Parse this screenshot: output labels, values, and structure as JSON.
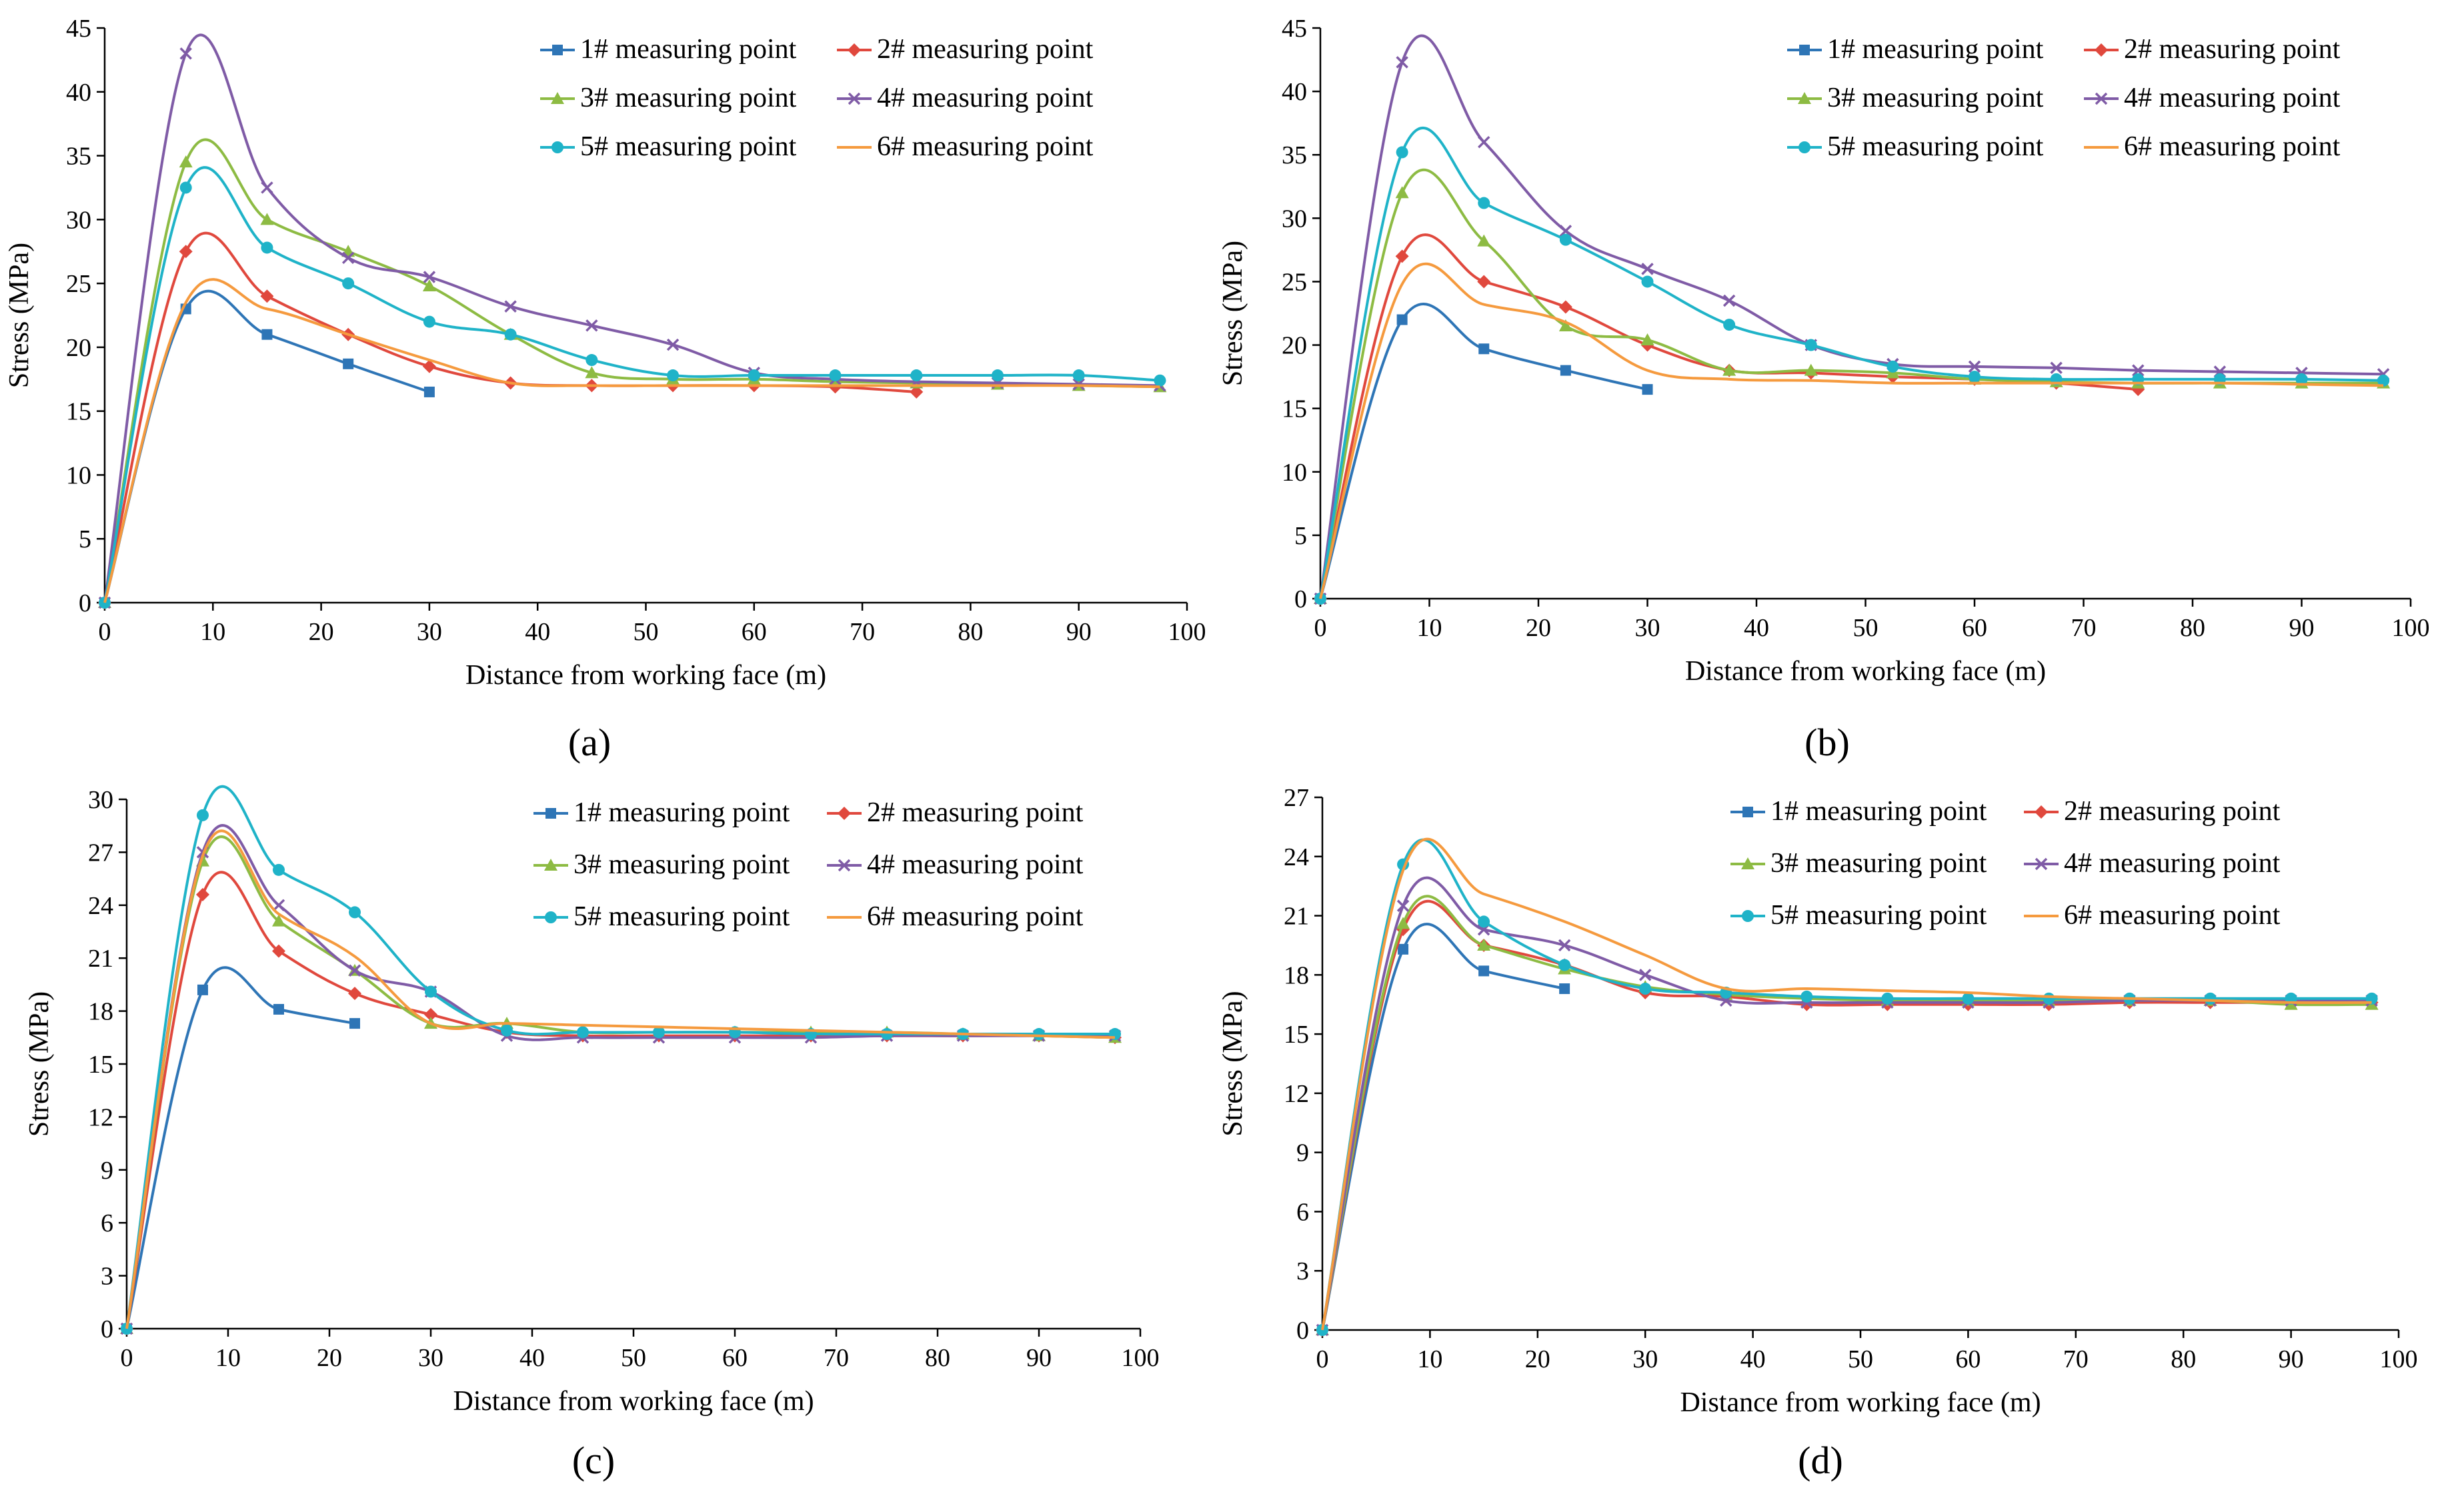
{
  "series_colors": [
    "#2e75b6",
    "#e0483d",
    "#8dbb43",
    "#7f5ba6",
    "#1fb3c8",
    "#f59a3e"
  ],
  "series_markers": [
    "square",
    "diamond",
    "triangle",
    "cross",
    "circle",
    "none"
  ],
  "chart_data": [
    {
      "type": "line",
      "panel_label": "(a)",
      "xlabel": "Distance from working face (m)",
      "ylabel": "Stress (MPa)",
      "xlim": [
        0,
        100
      ],
      "ylim": [
        0,
        45
      ],
      "xticks": [
        0,
        10,
        20,
        30,
        40,
        50,
        60,
        70,
        80,
        90,
        100
      ],
      "yticks": [
        0,
        5,
        10,
        15,
        20,
        25,
        30,
        35,
        40,
        45
      ],
      "grid": false,
      "legend_position": "top-right",
      "series": [
        {
          "name": "1# measuring point",
          "x": [
            0,
            7.5,
            15,
            22.5,
            30
          ],
          "y": [
            0,
            23,
            21,
            18.7,
            16.5
          ]
        },
        {
          "name": "2# measuring point",
          "x": [
            0,
            7.5,
            15,
            22.5,
            30,
            37.5,
            45,
            52.5,
            60,
            67.5,
            75
          ],
          "y": [
            0,
            27.5,
            24,
            21,
            18.5,
            17.2,
            17,
            17,
            17,
            16.9,
            16.5
          ]
        },
        {
          "name": "3# measuring point",
          "x": [
            0,
            7.5,
            15,
            22.5,
            30,
            37.5,
            45,
            52.5,
            60,
            67.5,
            75,
            82.5,
            90,
            97.5
          ],
          "y": [
            0,
            34.5,
            30,
            27.5,
            24.8,
            21,
            18,
            17.5,
            17.5,
            17.3,
            17.2,
            17.1,
            17,
            16.9
          ]
        },
        {
          "name": "4# measuring point",
          "x": [
            0,
            7.5,
            15,
            22.5,
            30,
            37.5,
            45,
            52.5,
            60,
            67.5,
            75,
            82.5,
            90,
            97.5
          ],
          "y": [
            0,
            43,
            32.5,
            27,
            25.5,
            23.2,
            21.7,
            20.2,
            18,
            17.5,
            17.3,
            17.2,
            17.1,
            17
          ]
        },
        {
          "name": "5# measuring point",
          "x": [
            0,
            7.5,
            15,
            22.5,
            30,
            37.5,
            45,
            52.5,
            60,
            67.5,
            75,
            82.5,
            90,
            97.5
          ],
          "y": [
            0,
            32.5,
            27.8,
            25,
            22,
            21,
            19,
            17.8,
            17.8,
            17.8,
            17.8,
            17.8,
            17.8,
            17.4
          ]
        },
        {
          "name": "6# measuring point",
          "x": [
            0,
            7.5,
            15,
            22.5,
            30,
            37.5,
            45,
            52.5,
            60,
            67.5,
            75,
            82.5,
            90,
            97.5
          ],
          "y": [
            0,
            23.5,
            23,
            21,
            19,
            17.2,
            17,
            17,
            17,
            17,
            17,
            17,
            17,
            16.9
          ]
        }
      ]
    },
    {
      "type": "line",
      "panel_label": "(b)",
      "xlabel": "Distance from working face (m)",
      "ylabel": "Stress (MPa)",
      "xlim": [
        0,
        100
      ],
      "ylim": [
        0,
        45
      ],
      "xticks": [
        0,
        10,
        20,
        30,
        40,
        50,
        60,
        70,
        80,
        90,
        100
      ],
      "yticks": [
        0,
        5,
        10,
        15,
        20,
        25,
        30,
        35,
        40,
        45
      ],
      "grid": false,
      "legend_position": "top-right",
      "series": [
        {
          "name": "1# measuring point",
          "x": [
            0,
            7.5,
            15,
            22.5,
            30
          ],
          "y": [
            0,
            22,
            19.7,
            18,
            16.5
          ]
        },
        {
          "name": "2# measuring point",
          "x": [
            0,
            7.5,
            15,
            22.5,
            30,
            37.5,
            45,
            52.5,
            60,
            67.5,
            75
          ],
          "y": [
            0,
            27,
            25,
            23,
            20,
            18,
            17.8,
            17.5,
            17.3,
            17,
            16.5
          ]
        },
        {
          "name": "3# measuring point",
          "x": [
            0,
            7.5,
            15,
            22.5,
            30,
            37.5,
            45,
            52.5,
            60,
            67.5,
            75,
            82.5,
            90,
            97.5
          ],
          "y": [
            0,
            32,
            28.2,
            21.5,
            20.4,
            18,
            18,
            17.8,
            17.3,
            17.1,
            17,
            17,
            17,
            17
          ]
        },
        {
          "name": "4# measuring point",
          "x": [
            0,
            7.5,
            15,
            22.5,
            30,
            37.5,
            45,
            52.5,
            60,
            67.5,
            75,
            82.5,
            90,
            97.5
          ],
          "y": [
            0,
            42.3,
            36,
            29,
            26,
            23.5,
            20,
            18.5,
            18.3,
            18.2,
            18,
            17.9,
            17.8,
            17.7
          ]
        },
        {
          "name": "5# measuring point",
          "x": [
            0,
            7.5,
            15,
            22.5,
            30,
            37.5,
            45,
            52.5,
            60,
            67.5,
            75,
            82.5,
            90,
            97.5
          ],
          "y": [
            0,
            35.2,
            31.2,
            28.3,
            25,
            21.6,
            20,
            18.3,
            17.5,
            17.3,
            17.3,
            17.3,
            17.3,
            17.2
          ]
        },
        {
          "name": "6# measuring point",
          "x": [
            0,
            7.5,
            15,
            22.5,
            30,
            37.5,
            45,
            52.5,
            60,
            67.5,
            75,
            82.5,
            90,
            97.5
          ],
          "y": [
            0,
            24.8,
            23.2,
            21.8,
            18,
            17.3,
            17.2,
            17,
            17,
            17,
            17,
            17,
            16.9,
            16.8
          ]
        }
      ]
    },
    {
      "type": "line",
      "panel_label": "(c)",
      "xlabel": "Distance from working face (m)",
      "ylabel": "Stress (MPa)",
      "xlim": [
        0,
        100
      ],
      "ylim": [
        0,
        30
      ],
      "xticks": [
        0,
        10,
        20,
        30,
        40,
        50,
        60,
        70,
        80,
        90,
        100
      ],
      "yticks": [
        0,
        3,
        6,
        9,
        12,
        15,
        18,
        21,
        24,
        27,
        30
      ],
      "grid": false,
      "legend_position": "top-right",
      "series": [
        {
          "name": "1# measuring point",
          "x": [
            0,
            7.5,
            15,
            22.5
          ],
          "y": [
            0,
            19.2,
            18.1,
            17.3
          ]
        },
        {
          "name": "2# measuring point",
          "x": [
            0,
            7.5,
            15,
            22.5,
            30,
            37.5,
            45,
            52.5,
            60,
            67.5,
            75,
            82.5,
            90,
            97.5
          ],
          "y": [
            0,
            24.6,
            21.4,
            19,
            17.8,
            16.8,
            16.6,
            16.6,
            16.6,
            16.6,
            16.6,
            16.6,
            16.6,
            16.5
          ]
        },
        {
          "name": "3# measuring point",
          "x": [
            0,
            7.5,
            15,
            22.5,
            30,
            37.5,
            45,
            52.5,
            60,
            67.5,
            75,
            82.5,
            90,
            97.5
          ],
          "y": [
            0,
            26.5,
            23.1,
            20.3,
            17.3,
            17.3,
            16.8,
            16.8,
            16.8,
            16.8,
            16.8,
            16.7,
            16.6,
            16.5
          ]
        },
        {
          "name": "4# measuring point",
          "x": [
            0,
            7.5,
            15,
            22.5,
            30,
            37.5,
            45,
            52.5,
            60,
            67.5,
            75,
            82.5,
            90,
            97.5
          ],
          "y": [
            0,
            27,
            24,
            20.3,
            19.1,
            16.6,
            16.5,
            16.5,
            16.5,
            16.5,
            16.6,
            16.6,
            16.6,
            16.6
          ]
        },
        {
          "name": "5# measuring point",
          "x": [
            0,
            7.5,
            15,
            22.5,
            30,
            37.5,
            45,
            52.5,
            60,
            67.5,
            75,
            82.5,
            90,
            97.5
          ],
          "y": [
            0,
            29.1,
            26,
            23.6,
            19.1,
            16.9,
            16.8,
            16.8,
            16.8,
            16.7,
            16.7,
            16.7,
            16.7,
            16.7
          ]
        },
        {
          "name": "6# measuring point",
          "x": [
            0,
            7.5,
            15,
            22.5,
            30,
            37.5,
            45,
            52.5,
            60,
            67.5,
            75,
            82.5,
            90,
            97.5
          ],
          "y": [
            0,
            26.8,
            23.5,
            21.1,
            17.3,
            17.3,
            17.2,
            17.1,
            17,
            16.9,
            16.8,
            16.7,
            16.6,
            16.5
          ]
        }
      ]
    },
    {
      "type": "line",
      "panel_label": "(d)",
      "xlabel": "Distance from working face (m)",
      "ylabel": "Stress (MPa)",
      "xlim": [
        0,
        100
      ],
      "ylim": [
        0,
        27
      ],
      "xticks": [
        0,
        10,
        20,
        30,
        40,
        50,
        60,
        70,
        80,
        90,
        100
      ],
      "yticks": [
        0,
        3,
        6,
        9,
        12,
        15,
        18,
        21,
        24,
        27
      ],
      "grid": false,
      "legend_position": "top-right",
      "series": [
        {
          "name": "1# measuring point",
          "x": [
            0,
            7.5,
            15,
            22.5
          ],
          "y": [
            0,
            19.3,
            18.2,
            17.3
          ]
        },
        {
          "name": "2# measuring point",
          "x": [
            0,
            7.5,
            15,
            22.5,
            30,
            37.5,
            45,
            52.5,
            60,
            67.5,
            75,
            82.5,
            90,
            97.5
          ],
          "y": [
            0,
            20.3,
            19.5,
            18.5,
            17.1,
            16.9,
            16.5,
            16.5,
            16.5,
            16.5,
            16.6,
            16.6,
            16.6,
            16.6
          ]
        },
        {
          "name": "3# measuring point",
          "x": [
            0,
            7.5,
            15,
            22.5,
            30,
            37.5,
            45,
            52.5,
            60,
            67.5,
            75,
            82.5,
            90,
            97.5
          ],
          "y": [
            0,
            20.6,
            19.5,
            18.3,
            17.4,
            17,
            16.8,
            16.7,
            16.7,
            16.7,
            16.7,
            16.7,
            16.5,
            16.5
          ]
        },
        {
          "name": "4# measuring point",
          "x": [
            0,
            7.5,
            15,
            22.5,
            30,
            37.5,
            45,
            52.5,
            60,
            67.5,
            75,
            82.5,
            90,
            97.5
          ],
          "y": [
            0,
            21.5,
            20.3,
            19.5,
            18,
            16.7,
            16.6,
            16.6,
            16.6,
            16.6,
            16.7,
            16.7,
            16.7,
            16.7
          ]
        },
        {
          "name": "5# measuring point",
          "x": [
            0,
            7.5,
            15,
            22.5,
            30,
            37.5,
            45,
            52.5,
            60,
            67.5,
            75,
            82.5,
            90,
            97.5
          ],
          "y": [
            0,
            23.6,
            20.7,
            18.5,
            17.3,
            17.1,
            16.9,
            16.8,
            16.8,
            16.8,
            16.8,
            16.8,
            16.8,
            16.8
          ]
        },
        {
          "name": "6# measuring point",
          "x": [
            0,
            7.5,
            15,
            22.5,
            30,
            37.5,
            45,
            52.5,
            60,
            67.5,
            75,
            82.5,
            90,
            97.5
          ],
          "y": [
            0,
            23.3,
            22.1,
            20.7,
            19,
            17.3,
            17.3,
            17.2,
            17.1,
            16.9,
            16.8,
            16.7,
            16.6,
            16.6
          ]
        }
      ]
    }
  ]
}
